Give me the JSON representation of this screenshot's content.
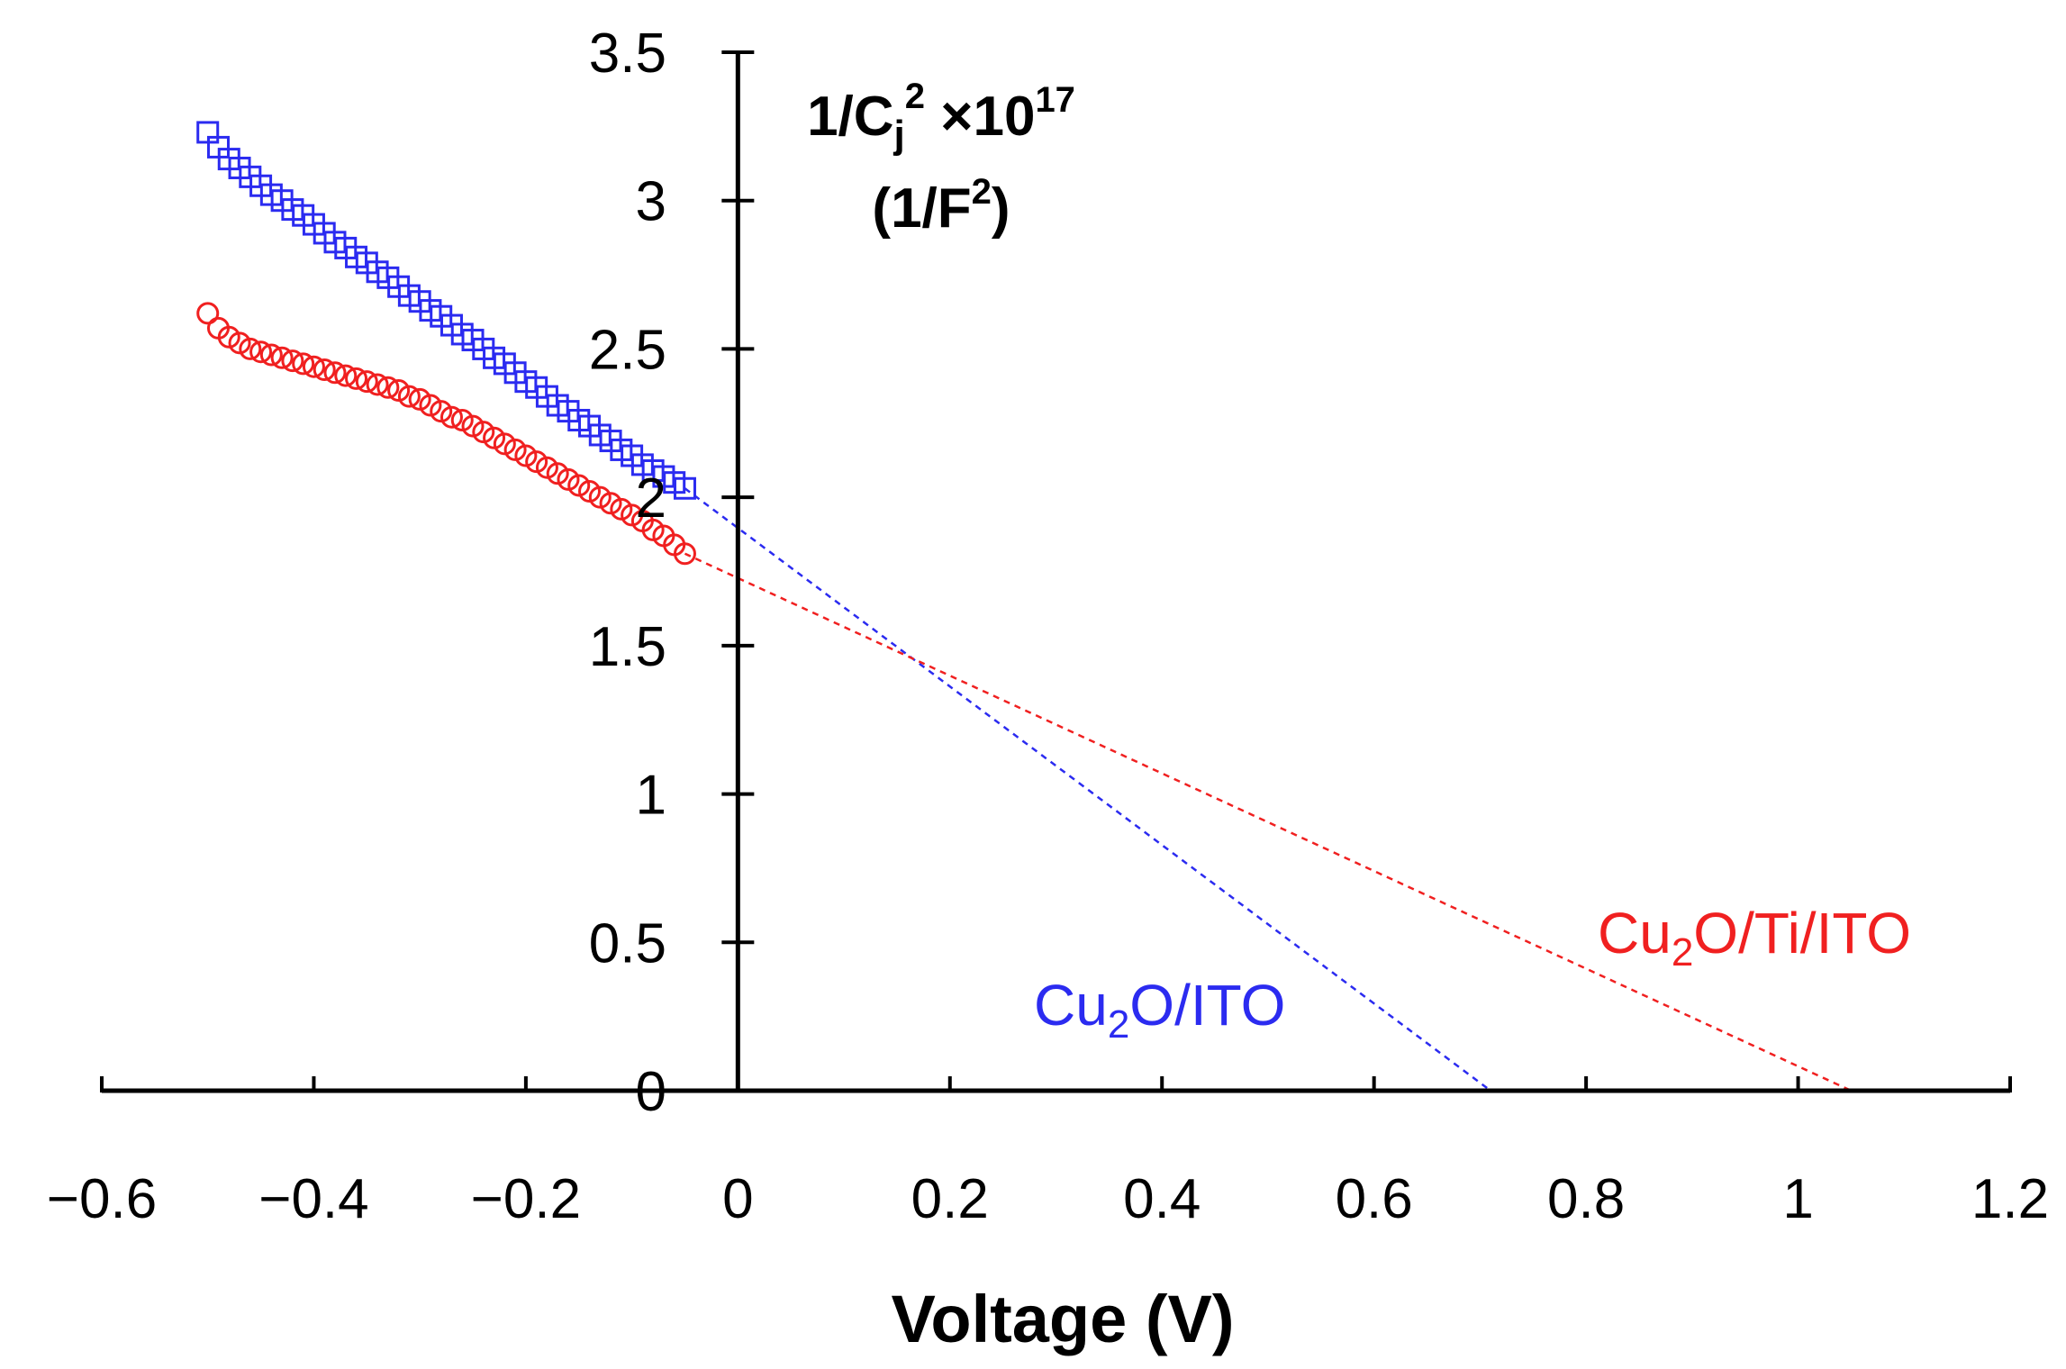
{
  "chart_data": {
    "type": "scatter",
    "title": "",
    "xlabel": "Voltage (V)",
    "ylabel": {
      "part1": "1/C",
      "sub": "j",
      "sup": "2",
      "part2": " ×10",
      "sup2": "17",
      "line2a": "(1/F",
      "line2sup": "2",
      "line2b": ")"
    },
    "xlim": [
      -0.6,
      1.2
    ],
    "ylim": [
      0,
      3.5
    ],
    "x_ticks": [
      -0.6,
      -0.4,
      -0.2,
      0,
      0.2,
      0.4,
      0.6,
      0.8,
      1,
      1.2
    ],
    "x_tick_labels": [
      "−0.6",
      "−0.4",
      "−0.2",
      "0",
      "0.2",
      "0.4",
      "0.6",
      "0.8",
      "1",
      "1.2"
    ],
    "y_ticks": [
      0,
      0.5,
      1,
      1.5,
      2,
      2.5,
      3,
      3.5
    ],
    "y_tick_labels": [
      "0",
      "0.5",
      "1",
      "1.5",
      "2",
      "2.5",
      "3",
      "3.5"
    ],
    "grid": false,
    "series": [
      {
        "name": "Cu2O/ITO",
        "label_main": "Cu",
        "label_sub": "2",
        "label_rest": "O/ITO",
        "color": "#2b2bf0",
        "marker": "square",
        "x": [
          -0.5,
          -0.49,
          -0.48,
          -0.47,
          -0.46,
          -0.45,
          -0.44,
          -0.43,
          -0.42,
          -0.41,
          -0.4,
          -0.39,
          -0.38,
          -0.37,
          -0.36,
          -0.35,
          -0.34,
          -0.33,
          -0.32,
          -0.31,
          -0.3,
          -0.29,
          -0.28,
          -0.27,
          -0.26,
          -0.25,
          -0.24,
          -0.23,
          -0.22,
          -0.21,
          -0.2,
          -0.19,
          -0.18,
          -0.17,
          -0.16,
          -0.15,
          -0.14,
          -0.13,
          -0.12,
          -0.11,
          -0.1,
          -0.09,
          -0.08,
          -0.07,
          -0.06,
          -0.05
        ],
        "y": [
          3.23,
          3.18,
          3.14,
          3.11,
          3.08,
          3.05,
          3.02,
          3.0,
          2.97,
          2.95,
          2.92,
          2.89,
          2.86,
          2.84,
          2.81,
          2.79,
          2.76,
          2.74,
          2.71,
          2.68,
          2.66,
          2.63,
          2.61,
          2.58,
          2.55,
          2.53,
          2.5,
          2.47,
          2.45,
          2.42,
          2.39,
          2.37,
          2.34,
          2.31,
          2.29,
          2.26,
          2.24,
          2.21,
          2.19,
          2.16,
          2.14,
          2.11,
          2.09,
          2.07,
          2.05,
          2.03
        ],
        "fit_line": {
          "x": [
            -0.05,
            0.71
          ],
          "y": [
            2.03,
            0.0
          ]
        }
      },
      {
        "name": "Cu2O/Ti/ITO",
        "label_main": "Cu",
        "label_sub": "2",
        "label_rest": "O/Ti/ITO",
        "color": "#f02020",
        "marker": "circle",
        "x": [
          -0.5,
          -0.49,
          -0.48,
          -0.47,
          -0.46,
          -0.45,
          -0.44,
          -0.43,
          -0.42,
          -0.41,
          -0.4,
          -0.39,
          -0.38,
          -0.37,
          -0.36,
          -0.35,
          -0.34,
          -0.33,
          -0.32,
          -0.31,
          -0.3,
          -0.29,
          -0.28,
          -0.27,
          -0.26,
          -0.25,
          -0.24,
          -0.23,
          -0.22,
          -0.21,
          -0.2,
          -0.19,
          -0.18,
          -0.17,
          -0.16,
          -0.15,
          -0.14,
          -0.13,
          -0.12,
          -0.11,
          -0.1,
          -0.09,
          -0.08,
          -0.07,
          -0.06,
          -0.05
        ],
        "y": [
          2.62,
          2.57,
          2.54,
          2.52,
          2.5,
          2.49,
          2.48,
          2.47,
          2.46,
          2.45,
          2.44,
          2.43,
          2.42,
          2.41,
          2.4,
          2.39,
          2.38,
          2.37,
          2.36,
          2.34,
          2.33,
          2.31,
          2.29,
          2.27,
          2.26,
          2.24,
          2.22,
          2.2,
          2.18,
          2.16,
          2.14,
          2.12,
          2.1,
          2.08,
          2.06,
          2.04,
          2.02,
          2.0,
          1.98,
          1.96,
          1.94,
          1.92,
          1.89,
          1.87,
          1.84,
          1.81
        ],
        "fit_line": {
          "x": [
            -0.05,
            1.05
          ],
          "y": [
            1.81,
            0.0
          ]
        }
      }
    ]
  }
}
